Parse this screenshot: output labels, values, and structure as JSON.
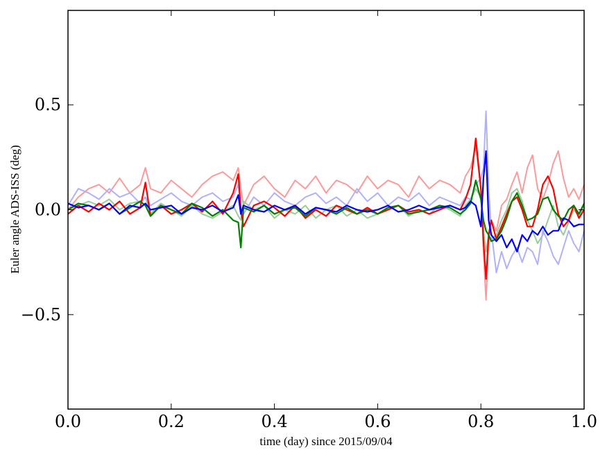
{
  "chart_data": {
    "type": "line",
    "title": "",
    "xlabel": "time (day) since 2015/09/04",
    "ylabel": "Euler angle ADS-ISS (deg)",
    "xlim": [
      0.0,
      1.0
    ],
    "ylim": [
      -0.95,
      0.95
    ],
    "grid": false,
    "legend": "none",
    "x_ticks": [
      0.0,
      0.2,
      0.4,
      0.6,
      0.8,
      1.0
    ],
    "x_tick_labels": [
      "0.0",
      "0.2",
      "0.4",
      "0.6",
      "0.8",
      "1.0"
    ],
    "y_ticks": [
      -0.5,
      0.0,
      0.5
    ],
    "y_tick_labels": [
      "−0.5",
      "0.0",
      "0.5"
    ],
    "x": [
      0.0,
      0.02,
      0.04,
      0.06,
      0.08,
      0.1,
      0.12,
      0.14,
      0.15,
      0.16,
      0.18,
      0.2,
      0.22,
      0.24,
      0.26,
      0.28,
      0.3,
      0.32,
      0.33,
      0.335,
      0.34,
      0.36,
      0.38,
      0.4,
      0.42,
      0.44,
      0.46,
      0.48,
      0.5,
      0.52,
      0.54,
      0.56,
      0.58,
      0.6,
      0.62,
      0.64,
      0.66,
      0.68,
      0.7,
      0.72,
      0.74,
      0.76,
      0.77,
      0.78,
      0.79,
      0.8,
      0.805,
      0.81,
      0.815,
      0.82,
      0.83,
      0.84,
      0.85,
      0.86,
      0.87,
      0.88,
      0.89,
      0.9,
      0.91,
      0.92,
      0.93,
      0.94,
      0.95,
      0.96,
      0.97,
      0.98,
      0.99,
      1.0
    ],
    "series": [
      {
        "color": "#ff9999",
        "values": [
          0.0,
          0.06,
          0.1,
          0.12,
          0.08,
          0.15,
          0.08,
          0.12,
          0.2,
          0.1,
          0.08,
          0.14,
          0.1,
          0.06,
          0.12,
          0.16,
          0.18,
          0.14,
          0.2,
          0.1,
          0.02,
          0.12,
          0.16,
          0.1,
          0.06,
          0.14,
          0.1,
          0.16,
          0.08,
          0.14,
          0.12,
          0.08,
          0.16,
          0.1,
          0.14,
          0.12,
          0.06,
          0.16,
          0.1,
          0.14,
          0.12,
          0.08,
          0.16,
          0.2,
          0.3,
          0.1,
          -0.2,
          -0.43,
          -0.15,
          -0.05,
          -0.1,
          0.02,
          0.05,
          0.12,
          0.18,
          0.08,
          0.2,
          0.26,
          0.1,
          0.05,
          0.12,
          0.22,
          0.28,
          0.15,
          0.06,
          0.1,
          0.05,
          0.12
        ]
      },
      {
        "color": "#99cc99",
        "values": [
          0.0,
          0.02,
          0.04,
          0.02,
          0.05,
          0.0,
          0.03,
          0.04,
          0.06,
          -0.02,
          0.03,
          0.0,
          -0.03,
          0.02,
          -0.02,
          -0.04,
          -0.01,
          0.02,
          -0.03,
          -0.05,
          0.04,
          0.0,
          0.02,
          -0.04,
          0.0,
          -0.02,
          0.02,
          -0.04,
          0.0,
          0.02,
          -0.03,
          0.0,
          -0.04,
          -0.02,
          0.0,
          0.02,
          -0.03,
          0.0,
          -0.02,
          0.02,
          0.0,
          -0.03,
          0.02,
          0.05,
          0.1,
          0.06,
          -0.1,
          -0.2,
          -0.12,
          -0.14,
          -0.12,
          -0.05,
          0.0,
          0.08,
          0.1,
          0.04,
          -0.05,
          -0.1,
          -0.16,
          -0.12,
          -0.05,
          0.02,
          -0.08,
          -0.12,
          -0.06,
          0.0,
          -0.03,
          0.02
        ]
      },
      {
        "color": "#b0b0ff",
        "values": [
          0.02,
          0.1,
          0.08,
          0.05,
          0.1,
          0.06,
          0.08,
          0.03,
          0.06,
          0.02,
          0.05,
          0.08,
          0.04,
          0.02,
          0.06,
          0.08,
          0.04,
          0.06,
          0.12,
          0.0,
          -0.02,
          0.06,
          0.02,
          0.08,
          0.04,
          0.02,
          0.06,
          0.08,
          0.03,
          0.06,
          0.02,
          0.1,
          0.04,
          0.08,
          0.02,
          0.06,
          0.04,
          0.08,
          0.02,
          0.06,
          0.04,
          0.02,
          0.06,
          0.05,
          0.12,
          0.15,
          0.2,
          0.47,
          0.1,
          -0.1,
          -0.3,
          -0.2,
          -0.28,
          -0.22,
          -0.18,
          -0.25,
          -0.18,
          -0.2,
          -0.26,
          -0.1,
          -0.15,
          -0.22,
          -0.26,
          -0.18,
          -0.1,
          -0.16,
          -0.2,
          -0.1
        ]
      },
      {
        "color": "#ff0000",
        "values": [
          -0.02,
          0.02,
          -0.01,
          0.03,
          0.0,
          0.04,
          -0.02,
          0.01,
          0.13,
          -0.03,
          0.02,
          -0.02,
          0.0,
          0.03,
          -0.01,
          0.04,
          -0.02,
          0.08,
          0.17,
          0.0,
          -0.08,
          0.02,
          0.04,
          0.01,
          -0.03,
          0.02,
          -0.04,
          0.0,
          -0.03,
          0.02,
          0.0,
          -0.02,
          0.01,
          -0.02,
          0.0,
          0.02,
          -0.01,
          0.0,
          -0.02,
          0.0,
          0.02,
          0.0,
          0.05,
          0.12,
          0.34,
          0.1,
          -0.15,
          -0.33,
          -0.12,
          -0.05,
          -0.14,
          -0.08,
          -0.02,
          0.04,
          0.06,
          0.0,
          -0.08,
          -0.08,
          0.0,
          0.12,
          0.16,
          0.1,
          -0.02,
          -0.08,
          -0.05,
          0.02,
          -0.04,
          0.0
        ]
      },
      {
        "color": "#008000",
        "values": [
          0.0,
          0.03,
          0.02,
          0.0,
          0.03,
          -0.02,
          0.01,
          0.04,
          0.02,
          -0.03,
          0.02,
          0.0,
          -0.02,
          0.03,
          0.01,
          -0.03,
          0.0,
          -0.05,
          -0.06,
          -0.18,
          0.01,
          -0.01,
          0.02,
          -0.02,
          0.0,
          0.01,
          -0.03,
          0.01,
          0.0,
          -0.02,
          0.01,
          -0.02,
          0.0,
          -0.02,
          0.01,
          0.02,
          -0.02,
          -0.01,
          0.0,
          0.02,
          0.01,
          -0.02,
          0.0,
          0.03,
          0.14,
          0.05,
          -0.05,
          -0.1,
          -0.12,
          -0.15,
          -0.14,
          -0.1,
          -0.04,
          0.04,
          0.08,
          0.02,
          -0.05,
          -0.04,
          -0.02,
          0.05,
          0.06,
          0.0,
          -0.03,
          -0.05,
          0.0,
          0.02,
          -0.02,
          0.03
        ]
      },
      {
        "color": "#0000ff",
        "values": [
          0.03,
          0.01,
          0.02,
          0.0,
          0.03,
          -0.02,
          0.02,
          0.01,
          0.03,
          0.0,
          0.01,
          0.02,
          -0.02,
          0.01,
          0.0,
          0.02,
          -0.01,
          0.01,
          0.07,
          -0.02,
          0.02,
          0.0,
          -0.01,
          0.02,
          0.0,
          0.02,
          -0.02,
          0.01,
          0.0,
          -0.01,
          0.02,
          0.0,
          -0.01,
          0.0,
          0.02,
          -0.01,
          0.0,
          0.02,
          0.0,
          0.01,
          0.02,
          0.0,
          0.01,
          0.04,
          0.02,
          -0.08,
          0.15,
          0.28,
          -0.05,
          -0.12,
          -0.15,
          -0.12,
          -0.18,
          -0.14,
          -0.2,
          -0.12,
          -0.15,
          -0.1,
          -0.12,
          -0.08,
          -0.12,
          -0.1,
          -0.1,
          -0.04,
          -0.05,
          -0.08,
          -0.07,
          -0.07
        ]
      }
    ]
  }
}
